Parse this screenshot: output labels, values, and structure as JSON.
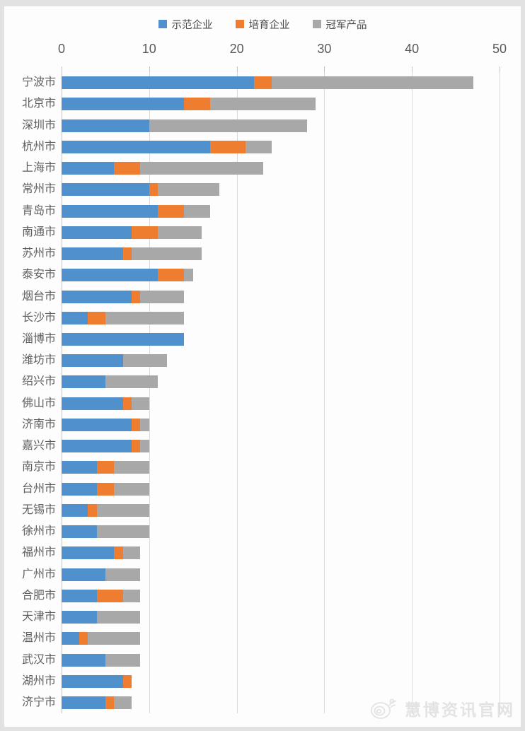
{
  "page": {
    "frame_color": "#e2e2e2",
    "canvas_color": "#fdfdfd",
    "gridline_color": "#dadada",
    "axis_text_color": "#5a5a5a"
  },
  "watermark": {
    "text": "慧博资讯官网"
  },
  "chart_data": {
    "type": "bar",
    "orientation": "horizontal",
    "stacked": true,
    "title": "",
    "xlabel": "",
    "ylabel": "",
    "xlim": [
      0,
      50
    ],
    "x_ticks": [
      0,
      10,
      20,
      30,
      40,
      50
    ],
    "grid": true,
    "legend_position": "top",
    "categories": [
      "宁波市",
      "北京市",
      "深圳市",
      "杭州市",
      "上海市",
      "常州市",
      "青岛市",
      "南通市",
      "苏州市",
      "泰安市",
      "烟台市",
      "长沙市",
      "淄博市",
      "潍坊市",
      "绍兴市",
      "佛山市",
      "济南市",
      "嘉兴市",
      "南京市",
      "台州市",
      "无锡市",
      "徐州市",
      "福州市",
      "广州市",
      "合肥市",
      "天津市",
      "温州市",
      "武汉市",
      "湖州市",
      "济宁市"
    ],
    "series": [
      {
        "name": "示范企业",
        "color": "#4f90cd",
        "values": [
          22,
          14,
          10,
          17,
          6,
          10,
          11,
          8,
          7,
          11,
          8,
          3,
          14,
          7,
          5,
          7,
          8,
          8,
          4,
          4,
          3,
          4,
          6,
          5,
          4,
          4,
          2,
          5,
          7,
          5
        ]
      },
      {
        "name": "培育企业",
        "color": "#ee7d2f",
        "values": [
          2,
          3,
          0,
          4,
          3,
          1,
          3,
          3,
          1,
          3,
          1,
          2,
          0,
          0,
          0,
          1,
          1,
          1,
          2,
          2,
          1,
          0,
          1,
          0,
          3,
          0,
          1,
          0,
          1,
          1
        ]
      },
      {
        "name": "冠军产品",
        "color": "#a8a8a8",
        "values": [
          23,
          12,
          18,
          3,
          14,
          7,
          3,
          5,
          8,
          1,
          5,
          9,
          0,
          5,
          6,
          2,
          1,
          1,
          4,
          4,
          6,
          6,
          2,
          4,
          2,
          5,
          6,
          4,
          0,
          2
        ]
      }
    ],
    "totals": [
      47,
      29,
      28,
      24,
      23,
      18,
      17,
      16,
      16,
      15,
      14,
      14,
      14,
      12,
      11,
      10,
      10,
      10,
      10,
      10,
      10,
      10,
      9,
      9,
      9,
      9,
      9,
      9,
      8,
      8
    ]
  }
}
